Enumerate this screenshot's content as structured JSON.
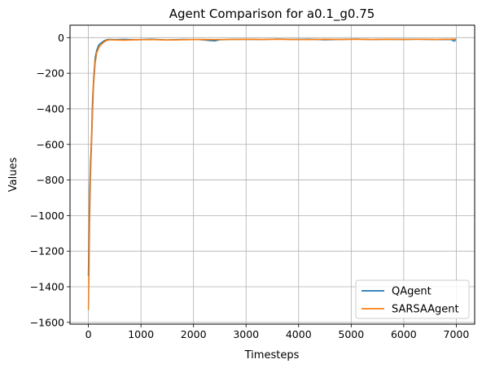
{
  "chart_data": {
    "type": "line",
    "title": "Agent Comparison for a0.1_g0.75",
    "xlabel": "Timesteps",
    "ylabel": "Values",
    "xlim": [
      -350,
      7350
    ],
    "ylim": [
      -1610,
      70
    ],
    "xticks": [
      0,
      1000,
      2000,
      3000,
      4000,
      5000,
      6000,
      7000
    ],
    "xtick_labels": [
      "0",
      "1000",
      "2000",
      "3000",
      "4000",
      "5000",
      "6000",
      "7000"
    ],
    "yticks": [
      0,
      -200,
      -400,
      -600,
      -800,
      -1000,
      -1200,
      -1400,
      -1600
    ],
    "ytick_labels": [
      "0",
      "−200",
      "−400",
      "−600",
      "−800",
      "−1000",
      "−1200",
      "−1400",
      "−1600"
    ],
    "grid": true,
    "legend_position": "lower-right",
    "series": [
      {
        "name": "QAgent",
        "color": "#1f77b4",
        "x": [
          0,
          10,
          25,
          40,
          60,
          80,
          100,
          130,
          160,
          200,
          250,
          300,
          350,
          400,
          500,
          700,
          900,
          1200,
          1500,
          1800,
          2100,
          2400,
          2500,
          2700,
          3000,
          3300,
          3600,
          3900,
          4200,
          4500,
          4800,
          5100,
          5400,
          5700,
          6000,
          6300,
          6600,
          6900,
          6960,
          7000
        ],
        "y": [
          -1340,
          -1150,
          -850,
          -700,
          -560,
          -350,
          -230,
          -110,
          -70,
          -40,
          -28,
          -18,
          -12,
          -10,
          -11,
          -10,
          -12,
          -9,
          -13,
          -10,
          -11,
          -18,
          -12,
          -10,
          -9,
          -11,
          -8,
          -10,
          -9,
          -12,
          -10,
          -8,
          -11,
          -9,
          -10,
          -9,
          -11,
          -10,
          -20,
          -9
        ]
      },
      {
        "name": "SARSAAgent",
        "color": "#ff7f0e",
        "x": [
          0,
          10,
          25,
          40,
          60,
          80,
          100,
          130,
          160,
          200,
          250,
          300,
          350,
          400,
          500,
          700,
          900,
          1200,
          1500,
          1800,
          2100,
          2400,
          2700,
          3000,
          3300,
          3600,
          3900,
          4200,
          4500,
          4800,
          5100,
          5400,
          5700,
          6000,
          6300,
          6600,
          6900,
          7000
        ],
        "y": [
          -1530,
          -1350,
          -1000,
          -780,
          -600,
          -420,
          -260,
          -140,
          -85,
          -55,
          -38,
          -24,
          -16,
          -12,
          -13,
          -14,
          -12,
          -11,
          -13,
          -12,
          -10,
          -11,
          -10,
          -9,
          -10,
          -9,
          -10,
          -11,
          -9,
          -10,
          -9,
          -10,
          -9,
          -10,
          -9,
          -10,
          -9,
          -8
        ]
      }
    ]
  }
}
